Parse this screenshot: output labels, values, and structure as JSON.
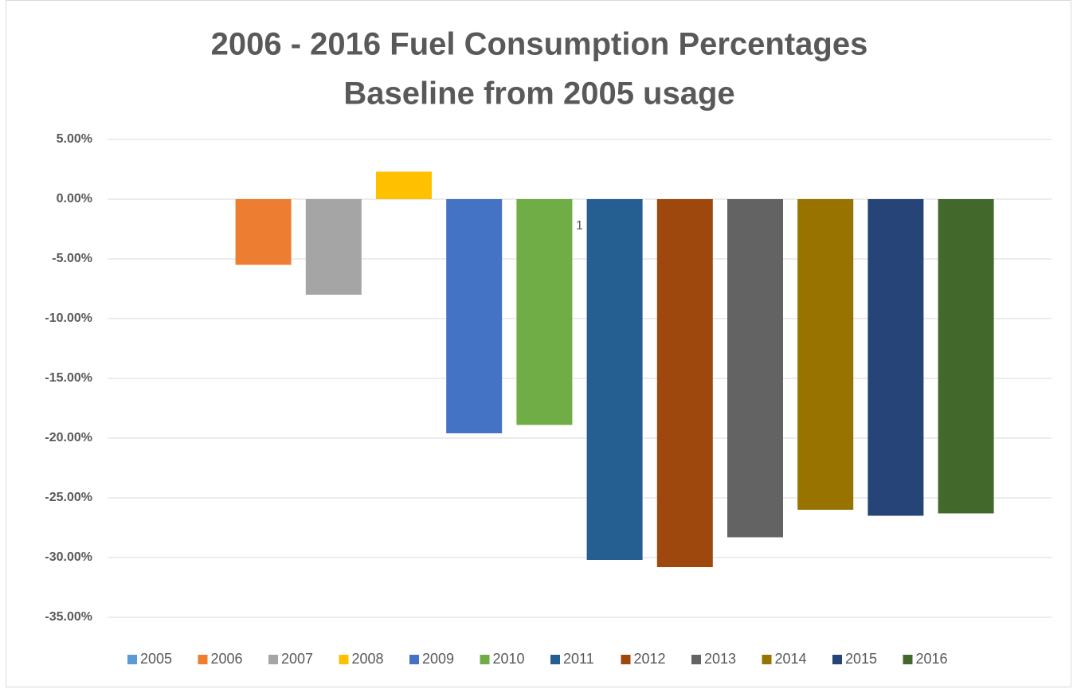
{
  "chart_data": {
    "type": "bar",
    "title": "2006 - 2016 Fuel Consumption Percentages",
    "subtitle": "Baseline from 2005 usage",
    "categories": [
      "1"
    ],
    "series": [
      {
        "name": "2005",
        "color": "#5b9bd5",
        "values": [
          0
        ]
      },
      {
        "name": "2006",
        "color": "#ed7d31",
        "values": [
          -5.5
        ]
      },
      {
        "name": "2007",
        "color": "#a5a5a5",
        "values": [
          -8.0
        ]
      },
      {
        "name": "2008",
        "color": "#ffc000",
        "values": [
          2.3
        ]
      },
      {
        "name": "2009",
        "color": "#4472c4",
        "values": [
          -19.6
        ]
      },
      {
        "name": "2010",
        "color": "#70ad47",
        "values": [
          -18.9
        ]
      },
      {
        "name": "2011",
        "color": "#255e91",
        "values": [
          -30.2
        ]
      },
      {
        "name": "2012",
        "color": "#9e480e",
        "values": [
          -30.8
        ]
      },
      {
        "name": "2013",
        "color": "#636363",
        "values": [
          -28.3
        ]
      },
      {
        "name": "2014",
        "color": "#997300",
        "values": [
          -26.0
        ]
      },
      {
        "name": "2015",
        "color": "#264478",
        "values": [
          -26.5
        ]
      },
      {
        "name": "2016",
        "color": "#43682b",
        "values": [
          -26.3
        ]
      }
    ],
    "ylim": [
      -35,
      5
    ],
    "yticks": [
      {
        "value": 5,
        "label": "5.00%"
      },
      {
        "value": 0,
        "label": "0.00%"
      },
      {
        "value": -5,
        "label": "-5.00%"
      },
      {
        "value": -10,
        "label": "-10.00%"
      },
      {
        "value": -15,
        "label": "-15.00%"
      },
      {
        "value": -20,
        "label": "-20.00%"
      },
      {
        "value": -25,
        "label": "-25.00%"
      },
      {
        "value": -30,
        "label": "-30.00%"
      },
      {
        "value": -35,
        "label": "-35.00%"
      }
    ],
    "grid": true,
    "legend": "bottom"
  }
}
